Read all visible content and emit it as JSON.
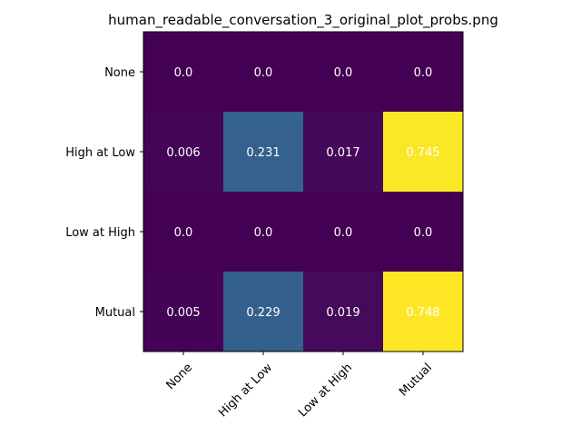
{
  "chart_data": {
    "type": "heatmap",
    "title": "human_readable_conversation_3_original_plot_probs.png",
    "xlabel": "",
    "ylabel": "",
    "x_categories": [
      "None",
      "High at Low",
      "Low at High",
      "Mutual"
    ],
    "y_categories": [
      "None",
      "High at Low",
      "Low at High",
      "Mutual"
    ],
    "values": [
      [
        0.0,
        0.0,
        0.0,
        0.0
      ],
      [
        0.006,
        0.231,
        0.017,
        0.745
      ],
      [
        0.0,
        0.0,
        0.0,
        0.0
      ],
      [
        0.005,
        0.229,
        0.019,
        0.748
      ]
    ],
    "value_labels": [
      [
        "0.0",
        "0.0",
        "0.0",
        "0.0"
      ],
      [
        "0.006",
        "0.231",
        "0.017",
        "0.745"
      ],
      [
        "0.0",
        "0.0",
        "0.0",
        "0.0"
      ],
      [
        "0.005",
        "0.229",
        "0.019",
        "0.748"
      ]
    ],
    "colormap": "viridis",
    "colormap_stops": [
      "#440154",
      "#482878",
      "#3e4989",
      "#31688e",
      "#26828e",
      "#1f9e89",
      "#35b779",
      "#6ece58",
      "#b5de2b",
      "#fde725"
    ],
    "vmin": 0.0,
    "vmax": 0.748,
    "label_color": "#ffffff",
    "frame_color": "#000000",
    "grid": false,
    "colorbar": false
  }
}
